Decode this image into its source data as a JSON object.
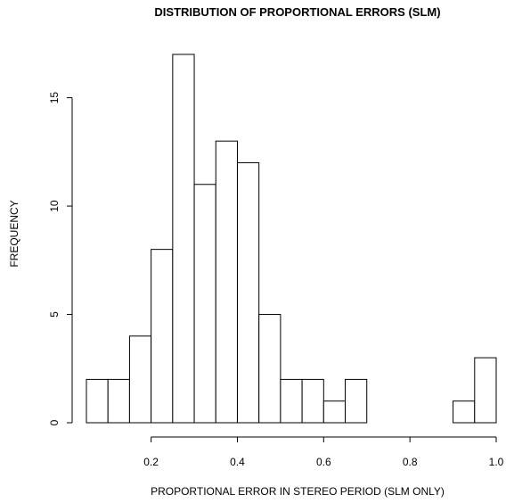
{
  "chart_data": {
    "type": "bar",
    "title": "DISTRIBUTION OF PROPORTIONAL ERRORS (SLM)",
    "xlabel": "PROPORTIONAL ERROR IN STEREO PERIOD (SLM ONLY)",
    "ylabel": "FREQUENCY",
    "bin_width": 0.05,
    "bins_start": [
      0.05,
      0.1,
      0.15,
      0.2,
      0.25,
      0.3,
      0.35,
      0.4,
      0.45,
      0.5,
      0.55,
      0.6,
      0.65,
      0.7,
      0.75,
      0.8,
      0.85,
      0.9,
      0.95
    ],
    "values": [
      2,
      2,
      4,
      8,
      17,
      11,
      13,
      12,
      5,
      2,
      2,
      1,
      2,
      0,
      0,
      0,
      0,
      1,
      3
    ],
    "xlim": [
      0.05,
      1.0
    ],
    "ylim": [
      0,
      17
    ],
    "x_ticks": [
      0.2,
      0.4,
      0.6,
      0.8,
      1.0
    ],
    "x_tick_labels": [
      "0.2",
      "0.4",
      "0.6",
      "0.8",
      "1.0"
    ],
    "y_ticks": [
      0,
      5,
      10,
      15
    ],
    "y_tick_labels": [
      "0",
      "5",
      "10",
      "15"
    ],
    "grid": false
  }
}
